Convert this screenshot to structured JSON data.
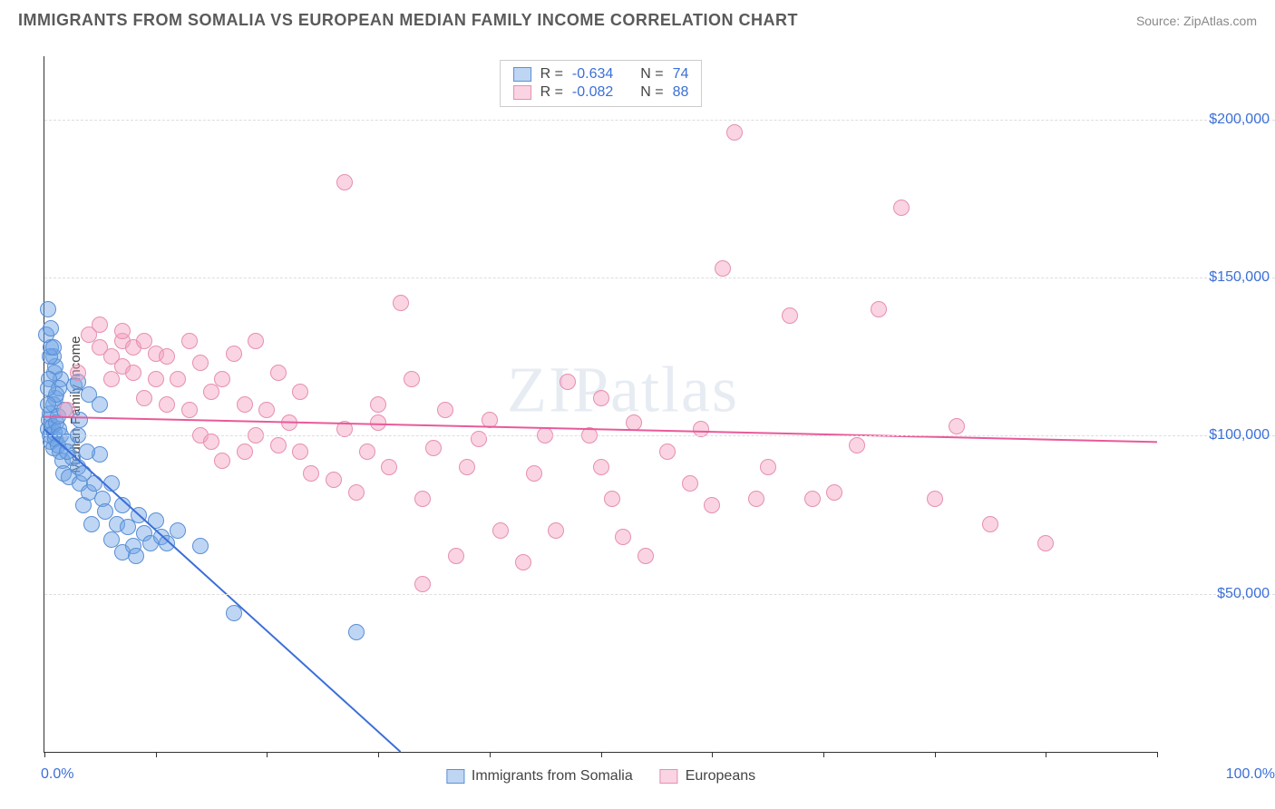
{
  "header": {
    "title": "IMMIGRANTS FROM SOMALIA VS EUROPEAN MEDIAN FAMILY INCOME CORRELATION CHART",
    "source_prefix": "Source: ",
    "source_value": "ZipAtlas.com"
  },
  "watermark": "ZIPatlas",
  "chart": {
    "type": "scatter",
    "y_axis_label": "Median Family Income",
    "background_color": "#ffffff",
    "grid_color": "#dddddd",
    "axis_color": "#333333",
    "marker_radius": 9,
    "xlim": [
      0,
      100
    ],
    "ylim": [
      0,
      220000
    ],
    "x_tick_step": 10,
    "x_start_label": "0.0%",
    "x_end_label": "100.0%",
    "y_gridlines": [
      50000,
      100000,
      150000,
      200000
    ],
    "y_tick_labels": [
      "$50,000",
      "$100,000",
      "$150,000",
      "$200,000"
    ],
    "y_tick_color": "#3b6fd8",
    "series": [
      {
        "key": "somalia",
        "label": "Immigrants from Somalia",
        "fill": "rgba(110,165,230,0.45)",
        "stroke": "#5a8fd4",
        "line_color": "#3b6fd8",
        "line_width": 2,
        "R_label": "R =",
        "R_value": "-0.634",
        "N_label": "N =",
        "N_value": "74",
        "regression": {
          "x1": 0,
          "y1": 102000,
          "x2": 32,
          "y2": 0
        },
        "points": [
          [
            0.3,
            102000
          ],
          [
            0.4,
            105000
          ],
          [
            0.5,
            100000
          ],
          [
            0.6,
            98000
          ],
          [
            0.5,
            107000
          ],
          [
            0.7,
            103000
          ],
          [
            0.8,
            96000
          ],
          [
            0.9,
            101000
          ],
          [
            1.0,
            99000
          ],
          [
            1.1,
            104000
          ],
          [
            1.2,
            97000
          ],
          [
            1.3,
            102000
          ],
          [
            1.0,
            112000
          ],
          [
            0.8,
            110000
          ],
          [
            1.2,
            106000
          ],
          [
            1.4,
            95000
          ],
          [
            1.5,
            100000
          ],
          [
            1.6,
            92000
          ],
          [
            1.8,
            108000
          ],
          [
            1.7,
            88000
          ],
          [
            2.0,
            98000
          ],
          [
            2.2,
            87000
          ],
          [
            2.5,
            93000
          ],
          [
            2.7,
            116000
          ],
          [
            2.0,
            95000
          ],
          [
            1.5,
            118000
          ],
          [
            1.3,
            115000
          ],
          [
            1.1,
            113000
          ],
          [
            0.9,
            120000
          ],
          [
            1.0,
            122000
          ],
          [
            0.8,
            125000
          ],
          [
            0.6,
            128000
          ],
          [
            0.5,
            125000
          ],
          [
            0.4,
            118000
          ],
          [
            0.3,
            115000
          ],
          [
            0.3,
            110000
          ],
          [
            0.2,
            132000
          ],
          [
            0.3,
            140000
          ],
          [
            0.6,
            134000
          ],
          [
            0.8,
            128000
          ],
          [
            3.0,
            90000
          ],
          [
            3.2,
            85000
          ],
          [
            3.5,
            88000
          ],
          [
            3.0,
            100000
          ],
          [
            3.5,
            78000
          ],
          [
            4.0,
            82000
          ],
          [
            4.2,
            72000
          ],
          [
            4.5,
            85000
          ],
          [
            5.0,
            94000
          ],
          [
            5.2,
            80000
          ],
          [
            5.5,
            76000
          ],
          [
            4.0,
            113000
          ],
          [
            5.0,
            110000
          ],
          [
            3.2,
            105000
          ],
          [
            3.8,
            95000
          ],
          [
            6.0,
            67000
          ],
          [
            6.5,
            72000
          ],
          [
            7.0,
            63000
          ],
          [
            7.5,
            71000
          ],
          [
            8.0,
            65000
          ],
          [
            8.2,
            62000
          ],
          [
            6.0,
            85000
          ],
          [
            7.0,
            78000
          ],
          [
            8.5,
            75000
          ],
          [
            9.0,
            69000
          ],
          [
            9.5,
            66000
          ],
          [
            10.0,
            73000
          ],
          [
            10.5,
            68000
          ],
          [
            11.0,
            66000
          ],
          [
            12.0,
            70000
          ],
          [
            14.0,
            65000
          ],
          [
            17.0,
            44000
          ],
          [
            28.0,
            38000
          ],
          [
            3.0,
            117000
          ]
        ]
      },
      {
        "key": "europeans",
        "label": "Europeans",
        "fill": "rgba(245,160,190,0.45)",
        "stroke": "#e68fb0",
        "line_color": "#e85a9a",
        "line_width": 2,
        "R_label": "R =",
        "R_value": "-0.082",
        "N_label": "N =",
        "N_value": "88",
        "regression": {
          "x1": 0,
          "y1": 106000,
          "x2": 100,
          "y2": 98000
        },
        "points": [
          [
            2,
            108000
          ],
          [
            3,
            120000
          ],
          [
            4,
            132000
          ],
          [
            5,
            128000
          ],
          [
            5,
            135000
          ],
          [
            6,
            125000
          ],
          [
            6,
            118000
          ],
          [
            7,
            130000
          ],
          [
            7,
            122000
          ],
          [
            7,
            133000
          ],
          [
            8,
            128000
          ],
          [
            8,
            120000
          ],
          [
            9,
            130000
          ],
          [
            9,
            112000
          ],
          [
            10,
            126000
          ],
          [
            10,
            118000
          ],
          [
            11,
            110000
          ],
          [
            11,
            125000
          ],
          [
            12,
            118000
          ],
          [
            13,
            130000
          ],
          [
            13,
            108000
          ],
          [
            14,
            123000
          ],
          [
            14,
            100000
          ],
          [
            15,
            114000
          ],
          [
            15,
            98000
          ],
          [
            16,
            118000
          ],
          [
            16,
            92000
          ],
          [
            17,
            126000
          ],
          [
            18,
            110000
          ],
          [
            18,
            95000
          ],
          [
            19,
            130000
          ],
          [
            19,
            100000
          ],
          [
            20,
            108000
          ],
          [
            21,
            97000
          ],
          [
            21,
            120000
          ],
          [
            22,
            104000
          ],
          [
            23,
            95000
          ],
          [
            23,
            114000
          ],
          [
            24,
            88000
          ],
          [
            26,
            86000
          ],
          [
            27,
            102000
          ],
          [
            27,
            180000
          ],
          [
            28,
            82000
          ],
          [
            29,
            95000
          ],
          [
            30,
            104000
          ],
          [
            30,
            110000
          ],
          [
            31,
            90000
          ],
          [
            32,
            142000
          ],
          [
            33,
            118000
          ],
          [
            34,
            80000
          ],
          [
            34,
            53000
          ],
          [
            35,
            96000
          ],
          [
            36,
            108000
          ],
          [
            37,
            62000
          ],
          [
            38,
            90000
          ],
          [
            39,
            99000
          ],
          [
            40,
            105000
          ],
          [
            41,
            70000
          ],
          [
            43,
            60000
          ],
          [
            44,
            88000
          ],
          [
            45,
            100000
          ],
          [
            46,
            70000
          ],
          [
            47,
            117000
          ],
          [
            49,
            100000
          ],
          [
            50,
            90000
          ],
          [
            51,
            80000
          ],
          [
            52,
            68000
          ],
          [
            53,
            104000
          ],
          [
            54,
            62000
          ],
          [
            56,
            95000
          ],
          [
            58,
            85000
          ],
          [
            59,
            102000
          ],
          [
            60,
            78000
          ],
          [
            61,
            153000
          ],
          [
            62,
            196000
          ],
          [
            64,
            80000
          ],
          [
            65,
            90000
          ],
          [
            67,
            138000
          ],
          [
            69,
            80000
          ],
          [
            71,
            82000
          ],
          [
            73,
            97000
          ],
          [
            75,
            140000
          ],
          [
            77,
            172000
          ],
          [
            80,
            80000
          ],
          [
            82,
            103000
          ],
          [
            85,
            72000
          ],
          [
            90,
            66000
          ],
          [
            50,
            112000
          ]
        ]
      }
    ]
  },
  "legend": {
    "items": [
      {
        "label": "Immigrants from Somalia",
        "fill": "rgba(110,165,230,0.45)",
        "stroke": "#5a8fd4"
      },
      {
        "label": "Europeans",
        "fill": "rgba(245,160,190,0.45)",
        "stroke": "#e68fb0"
      }
    ]
  }
}
